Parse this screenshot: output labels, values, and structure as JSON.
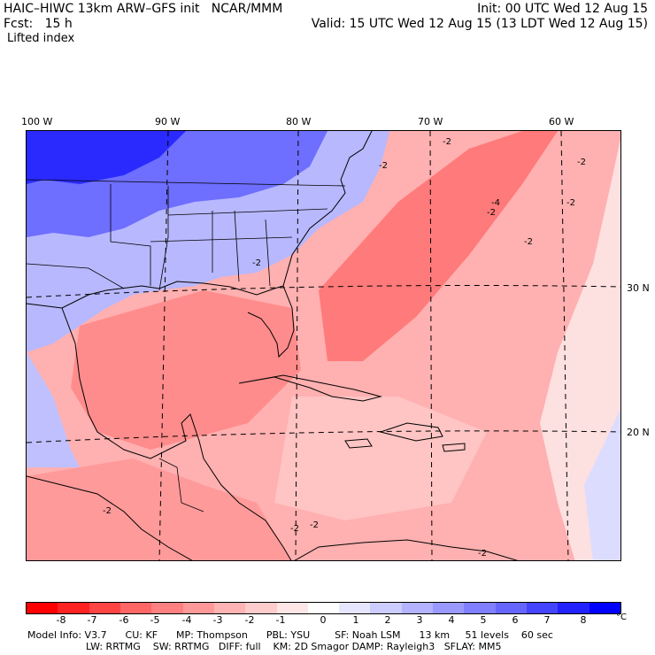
{
  "header": {
    "model_title": "HAIC–HIWC 13km ARW–GFS init   NCAR/MMM",
    "forecast": "Fcst:   15 h",
    "field": "Lifted index",
    "init": "Init: 00 UTC Wed 12 Aug 15",
    "valid": "Valid: 15 UTC Wed 12 Aug 15 (13 LDT Wed 12 Aug 15)"
  },
  "map": {
    "lon_labels": [
      "100 W",
      "90 W",
      "80 W",
      "70 W",
      "60 W"
    ],
    "lat_labels": [
      "30 N",
      "20 N"
    ],
    "contour_labels": [
      "-2",
      "-2",
      "-2",
      "-2",
      "-4",
      "-2",
      "-2",
      "-2",
      "-2",
      "-2",
      "-2",
      "-2"
    ]
  },
  "colorbar": {
    "ticks": [
      "-8",
      "-7",
      "-6",
      "-5",
      "-4",
      "-3",
      "-2",
      "-1",
      "0",
      "1",
      "2",
      "3",
      "4",
      "5",
      "6",
      "7",
      "8"
    ],
    "unit": "°C",
    "colors": [
      "#ff0000",
      "#ff2222",
      "#ff4444",
      "#ff6666",
      "#ff8080",
      "#ff9999",
      "#ffb3b3",
      "#ffcccc",
      "#ffe6e6",
      "#ffffff",
      "#e6e6ff",
      "#ccccff",
      "#b3b3ff",
      "#9999ff",
      "#7f7fff",
      "#6666ff",
      "#4444ff",
      "#2222ff",
      "#0000ff"
    ]
  },
  "model_info": {
    "line1": "Model Info: V3.7      CU: KF      MP: Thompson      PBL: YSU        SF: Noah LSM      13 km     51 levels    60 sec",
    "line2": "LW: RRTMG    SW: RRTMG   DIFF: full    KM: 2D Smagor DAMP: Rayleigh3   SFLAY: MM5"
  }
}
